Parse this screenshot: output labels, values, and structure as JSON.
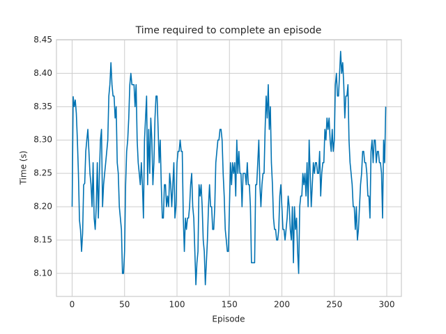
{
  "chart_data": {
    "type": "line",
    "title": "Time required to complete an episode",
    "x_label": "Episode",
    "y_label": "Time (s)",
    "color": "#0072b2",
    "grid": true,
    "xlim": [
      -14.95,
      313.95
    ],
    "ylim": [
      8.0655,
      8.4505
    ],
    "xticks": [
      0,
      50,
      100,
      150,
      200,
      250,
      300
    ],
    "yticks": [
      {
        "value": 8.1,
        "label": "8.10"
      },
      8.15,
      {
        "value": 8.2,
        "label": "8.20"
      },
      8.25,
      {
        "value": 8.3,
        "label": "8.30"
      },
      8.35,
      {
        "value": 8.4,
        "label": "8.40"
      },
      8.45
    ],
    "x": [
      0,
      1,
      2,
      3,
      4,
      5,
      6,
      7,
      8,
      9,
      10,
      11,
      12,
      13,
      14,
      15,
      16,
      17,
      18,
      19,
      20,
      21,
      22,
      23,
      24,
      25,
      26,
      27,
      28,
      29,
      30,
      31,
      32,
      33,
      34,
      35,
      36,
      37,
      38,
      39,
      40,
      41,
      42,
      43,
      44,
      45,
      46,
      47,
      48,
      49,
      50,
      51,
      52,
      53,
      54,
      55,
      56,
      57,
      58,
      59,
      60,
      61,
      62,
      63,
      64,
      65,
      66,
      67,
      68,
      69,
      70,
      71,
      72,
      73,
      74,
      75,
      76,
      77,
      78,
      79,
      80,
      81,
      82,
      83,
      84,
      85,
      86,
      87,
      88,
      89,
      90,
      91,
      92,
      93,
      94,
      95,
      96,
      97,
      98,
      99,
      100,
      101,
      102,
      103,
      104,
      105,
      106,
      107,
      108,
      109,
      110,
      111,
      112,
      113,
      114,
      115,
      116,
      117,
      118,
      119,
      120,
      121,
      122,
      123,
      124,
      125,
      126,
      127,
      128,
      129,
      130,
      131,
      132,
      133,
      134,
      135,
      136,
      137,
      138,
      139,
      140,
      141,
      142,
      143,
      144,
      145,
      146,
      147,
      148,
      149,
      150,
      151,
      152,
      153,
      154,
      155,
      156,
      157,
      158,
      159,
      160,
      161,
      162,
      163,
      164,
      165,
      166,
      167,
      168,
      169,
      170,
      171,
      172,
      173,
      174,
      175,
      176,
      177,
      178,
      179,
      180,
      181,
      182,
      183,
      184,
      185,
      186,
      187,
      188,
      189,
      190,
      191,
      192,
      193,
      194,
      195,
      196,
      197,
      198,
      199,
      200,
      201,
      202,
      203,
      204,
      205,
      206,
      207,
      208,
      209,
      210,
      211,
      212,
      213,
      214,
      215,
      216,
      217,
      218,
      219,
      220,
      221,
      222,
      223,
      224,
      225,
      226,
      227,
      228,
      229,
      230,
      231,
      232,
      233,
      234,
      235,
      236,
      237,
      238,
      239,
      240,
      241,
      242,
      243,
      244,
      245,
      246,
      247,
      248,
      249,
      250,
      251,
      252,
      253,
      254,
      255,
      256,
      257,
      258,
      259,
      260,
      261,
      262,
      263,
      264,
      265,
      266,
      267,
      268,
      269,
      270,
      271,
      272,
      273,
      274,
      275,
      276,
      277,
      278,
      279,
      280,
      281,
      282,
      283,
      284,
      285,
      286,
      287,
      288,
      289,
      290,
      291,
      292,
      293,
      294,
      295,
      296,
      297,
      298,
      299
    ],
    "values": [
      8.2,
      8.365,
      8.35,
      8.36,
      8.34,
      8.3,
      8.25,
      8.18,
      8.165,
      8.133,
      8.16,
      8.233,
      8.235,
      8.283,
      8.3,
      8.316,
      8.283,
      8.25,
      8.233,
      8.2,
      8.266,
      8.183,
      8.166,
      8.2,
      8.266,
      8.183,
      8.25,
      8.3,
      8.316,
      8.2,
      8.233,
      8.25,
      8.266,
      8.283,
      8.3,
      8.366,
      8.383,
      8.416,
      8.383,
      8.366,
      8.366,
      8.333,
      8.35,
      8.266,
      8.25,
      8.2,
      8.183,
      8.166,
      8.1,
      8.1,
      8.133,
      8.233,
      8.283,
      8.3,
      8.333,
      8.383,
      8.4,
      8.383,
      8.383,
      8.383,
      8.35,
      8.383,
      8.3,
      8.266,
      8.25,
      8.233,
      8.266,
      8.233,
      8.183,
      8.3,
      8.333,
      8.366,
      8.233,
      8.316,
      8.25,
      8.333,
      8.3,
      8.233,
      8.266,
      8.333,
      8.366,
      8.366,
      8.316,
      8.266,
      8.3,
      8.233,
      8.183,
      8.183,
      8.233,
      8.233,
      8.2,
      8.216,
      8.2,
      8.25,
      8.233,
      8.2,
      8.233,
      8.266,
      8.183,
      8.2,
      8.266,
      8.283,
      8.283,
      8.3,
      8.283,
      8.283,
      8.183,
      8.133,
      8.183,
      8.166,
      8.183,
      8.183,
      8.2,
      8.233,
      8.25,
      8.2,
      8.183,
      8.133,
      8.083,
      8.116,
      8.133,
      8.233,
      8.216,
      8.233,
      8.2,
      8.15,
      8.133,
      8.083,
      8.116,
      8.15,
      8.2,
      8.233,
      8.2,
      8.2,
      8.166,
      8.166,
      8.2,
      8.266,
      8.283,
      8.3,
      8.3,
      8.316,
      8.316,
      8.3,
      8.25,
      8.216,
      8.166,
      8.15,
      8.133,
      8.133,
      8.2,
      8.266,
      8.233,
      8.266,
      8.25,
      8.266,
      8.216,
      8.3,
      8.25,
      8.283,
      8.25,
      8.25,
      8.2,
      8.25,
      8.25,
      8.25,
      8.233,
      8.266,
      8.233,
      8.233,
      8.2,
      8.116,
      8.116,
      8.116,
      8.116,
      8.233,
      8.233,
      8.266,
      8.3,
      8.233,
      8.2,
      8.233,
      8.25,
      8.25,
      8.316,
      8.366,
      8.333,
      8.383,
      8.316,
      8.35,
      8.266,
      8.233,
      8.183,
      8.166,
      8.166,
      8.15,
      8.15,
      8.166,
      8.216,
      8.233,
      8.2,
      8.166,
      8.166,
      8.15,
      8.166,
      8.183,
      8.216,
      8.2,
      8.166,
      8.15,
      8.2,
      8.116,
      8.2,
      8.166,
      8.183,
      8.133,
      8.1,
      8.2,
      8.216,
      8.216,
      8.25,
      8.233,
      8.25,
      8.216,
      8.266,
      8.2,
      8.3,
      8.25,
      8.2,
      8.233,
      8.266,
      8.25,
      8.266,
      8.266,
      8.25,
      8.25,
      8.283,
      8.216,
      8.25,
      8.266,
      8.266,
      8.316,
      8.3,
      8.333,
      8.316,
      8.333,
      8.3,
      8.283,
      8.316,
      8.283,
      8.3,
      8.383,
      8.4,
      8.366,
      8.366,
      8.4,
      8.433,
      8.4,
      8.416,
      8.383,
      8.333,
      8.366,
      8.366,
      8.383,
      8.3,
      8.266,
      8.25,
      8.233,
      8.2,
      8.2,
      8.166,
      8.2,
      8.15,
      8.166,
      8.2,
      8.233,
      8.25,
      8.283,
      8.283,
      8.266,
      8.266,
      8.25,
      8.216,
      8.216,
      8.183,
      8.283,
      8.3,
      8.266,
      8.3,
      8.3,
      8.266,
      8.283,
      8.283,
      8.266,
      8.266,
      8.25,
      8.183,
      8.3,
      8.266,
      8.35
    ]
  }
}
